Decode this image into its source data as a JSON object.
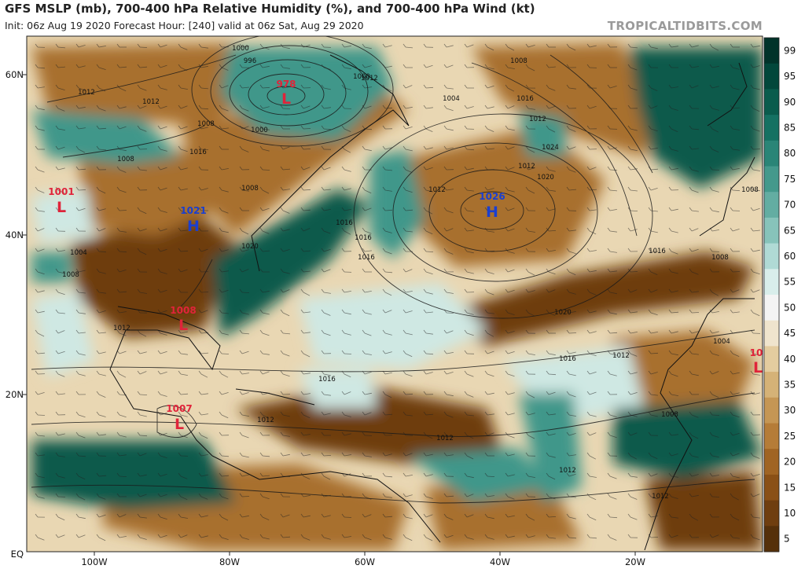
{
  "header": {
    "title": "GFS MSLP (mb), 700-400 hPa Relative Humidity (%), and 700-400 hPa Wind (kt)",
    "subtitle": "Init: 06z Aug 19 2020   Forecast Hour: [240]   valid at 06z Sat, Aug 29 2020",
    "brand": "TROPICALTIDBITS.COM"
  },
  "colorbar": {
    "ticks": [
      "99",
      "95",
      "90",
      "85",
      "80",
      "75",
      "70",
      "65",
      "60",
      "55",
      "50",
      "45",
      "40",
      "35",
      "30",
      "25",
      "20",
      "15",
      "10",
      "5"
    ],
    "colors": [
      "#01332a",
      "#02473b",
      "#0a5c4d",
      "#157162",
      "#2a8577",
      "#44998c",
      "#63ada2",
      "#87c3ba",
      "#b0dad5",
      "#d9eeeb",
      "#f4f4f4",
      "#efe4cd",
      "#e3cc9f",
      "#d5b277",
      "#c59654",
      "#b57c38",
      "#a06423",
      "#8a5016",
      "#6f3e0f",
      "#55300a"
    ]
  },
  "axes": {
    "x_ticks": [
      "100W",
      "80W",
      "60W",
      "40W",
      "20W"
    ],
    "y_ticks": [
      "60N",
      "40N",
      "20N",
      "EQ"
    ]
  },
  "centers": [
    {
      "type": "L",
      "value": "978"
    },
    {
      "type": "H",
      "value": "1026"
    },
    {
      "type": "H",
      "value": "1021"
    },
    {
      "type": "L",
      "value": "1001"
    },
    {
      "type": "L",
      "value": "1008"
    },
    {
      "type": "L",
      "value": "1007"
    },
    {
      "type": "L",
      "value": "10"
    }
  ],
  "isobar_labels": [
    "1000",
    "996",
    "1000",
    "1008",
    "1012",
    "1012",
    "1016",
    "1008",
    "1004",
    "1008",
    "1012",
    "1020",
    "1016",
    "1008",
    "1016",
    "1016",
    "1012",
    "1012",
    "1024",
    "1020",
    "1016",
    "1012",
    "1000",
    "1004",
    "1008",
    "1012",
    "1016",
    "1008",
    "1016",
    "1020",
    "1004",
    "1008",
    "1016",
    "1012",
    "1008",
    "1012",
    "1012",
    "1012",
    "1012"
  ],
  "colors": {
    "dry_dark": "#6e3d10",
    "dry": "#a8702f",
    "dry_light": "#d9bb86",
    "moist_light": "#cfe8e3",
    "moist": "#3f978a",
    "moist_dark": "#0d5a4c",
    "low_center": "#e0243a",
    "high_center": "#1a3fd0"
  }
}
